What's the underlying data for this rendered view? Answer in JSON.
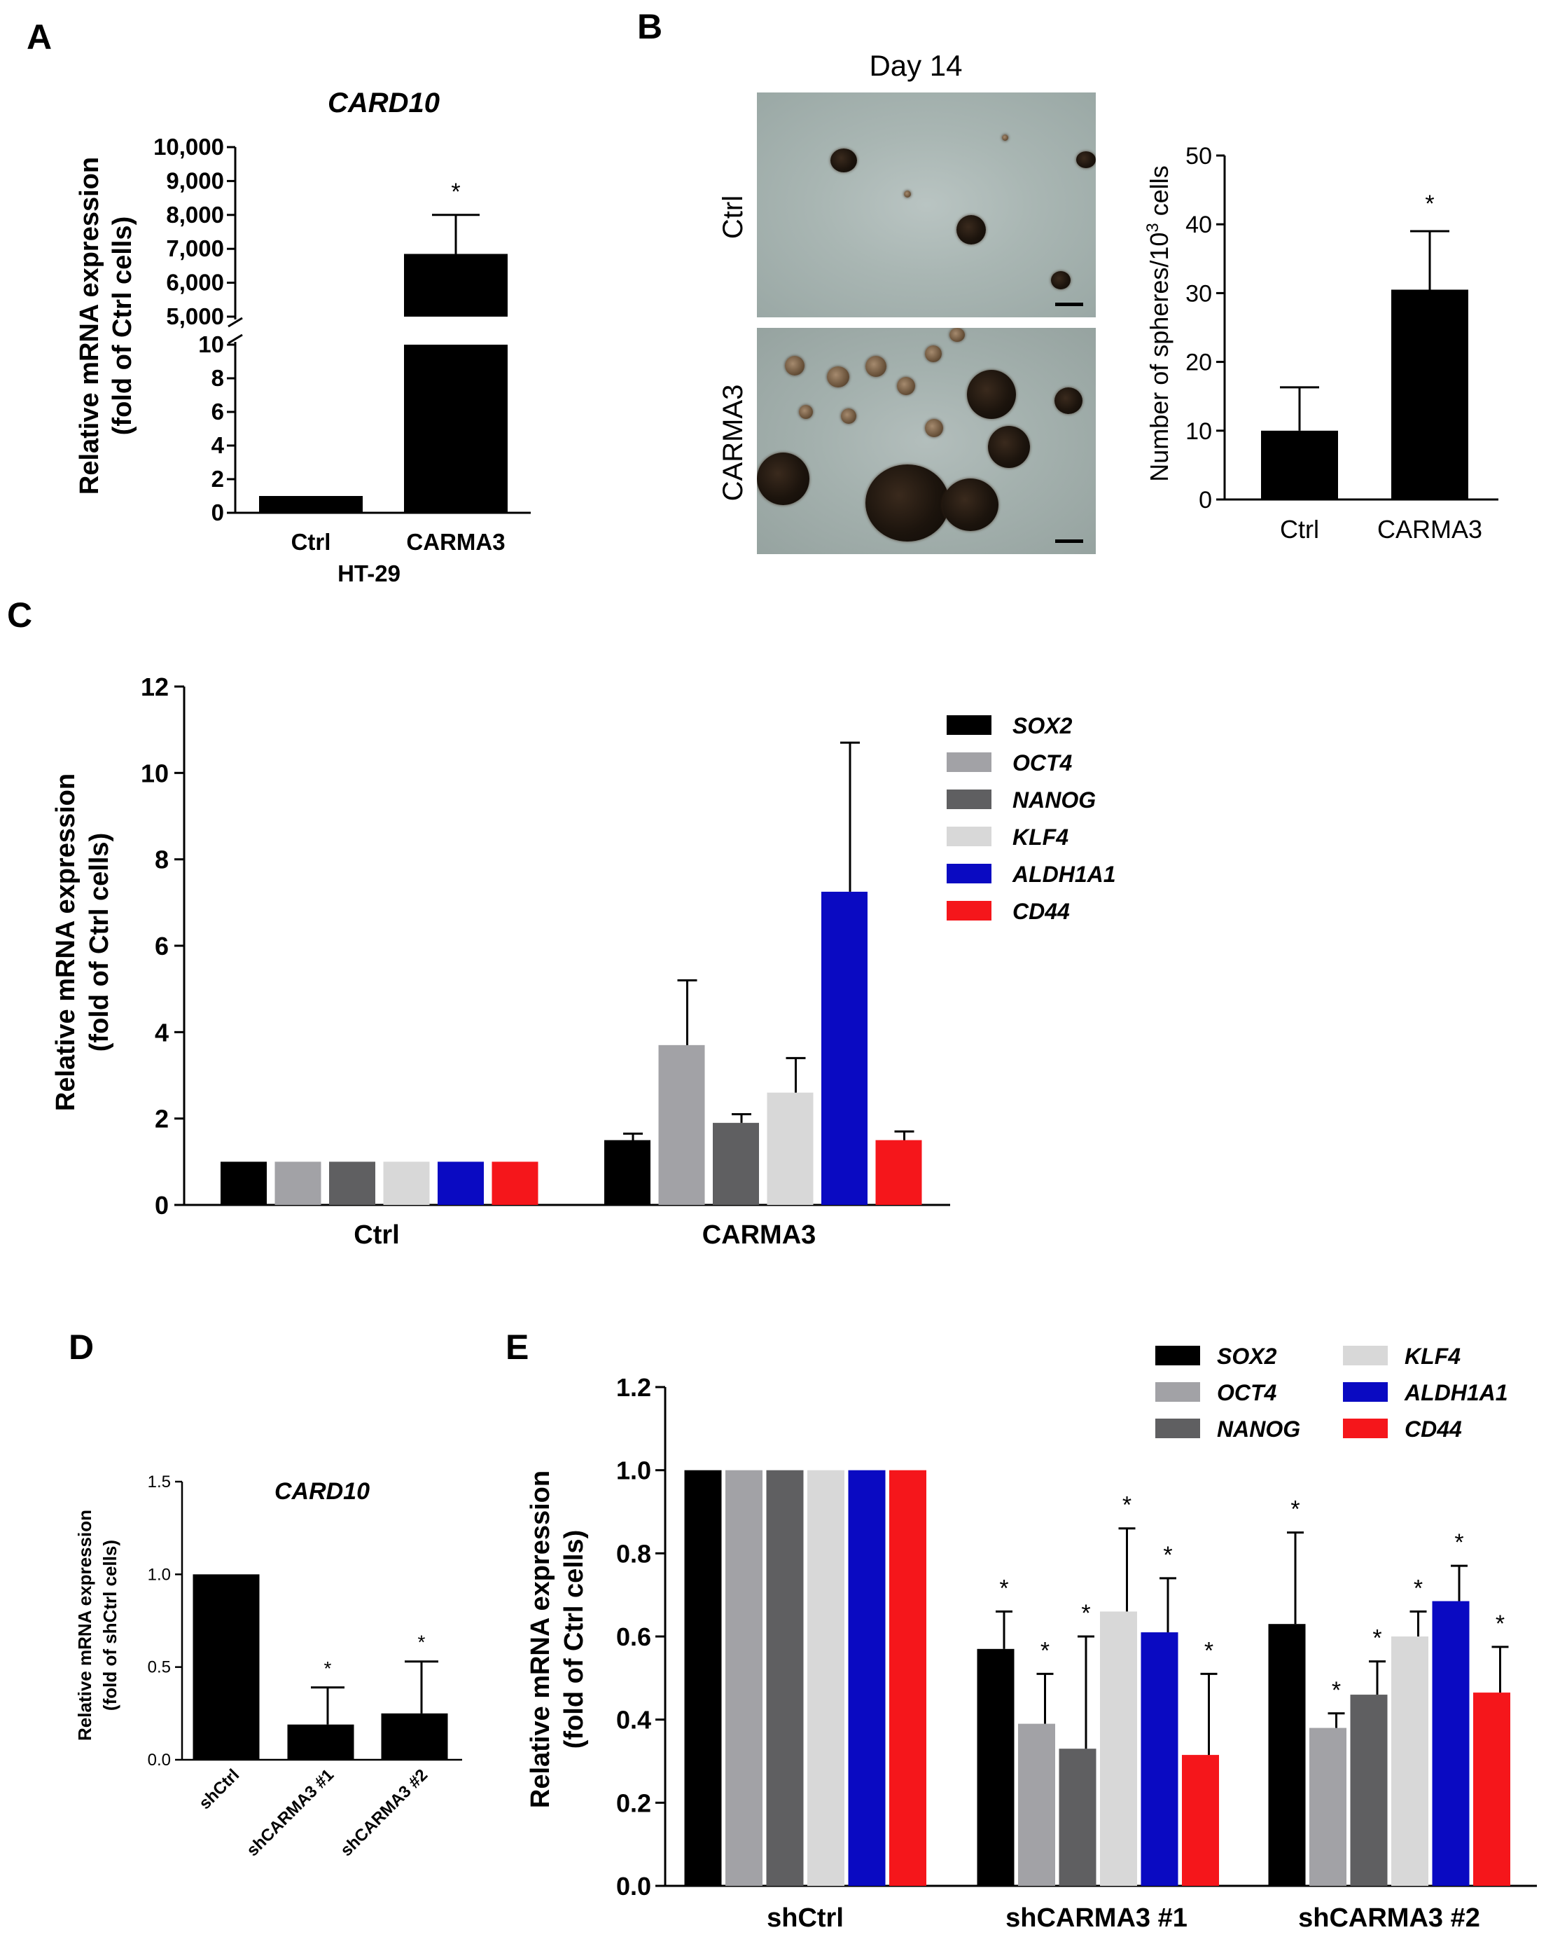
{
  "panels": {
    "A": {
      "label": "A",
      "title": "CARD10",
      "ylabel": [
        "Relative mRNA expression",
        "(fold of Ctrl cells)"
      ],
      "xlabel": "HT-29",
      "upper_ticks": [
        "5,000",
        "6,000",
        "7,000",
        "8,000",
        "9,000",
        "10,000"
      ],
      "lower_ticks": [
        "0",
        "2",
        "4",
        "6",
        "8",
        "10"
      ],
      "categories": [
        "Ctrl",
        "CARMA3"
      ],
      "significance": "*"
    },
    "B": {
      "label": "B",
      "image_title": "Day 14",
      "image_rows": [
        "Ctrl",
        "CARMA3"
      ],
      "ylabel_main": "Number of spheres/10",
      "ylabel_sup": "3",
      "ylabel_tail": " cells",
      "ticks": [
        "0",
        "10",
        "20",
        "30",
        "40",
        "50"
      ],
      "categories": [
        "Ctrl",
        "CARMA3"
      ],
      "significance": "*"
    },
    "C": {
      "label": "C",
      "ylabel": [
        "Relative mRNA expression",
        "(fold of Ctrl cells)"
      ],
      "ticks": [
        "0",
        "2",
        "4",
        "6",
        "8",
        "10",
        "12"
      ],
      "categories": [
        "Ctrl",
        "CARMA3"
      ]
    },
    "D": {
      "label": "D",
      "title": "CARD10",
      "ylabel": [
        "Relative mRNA expression",
        "(fold of shCtrl cells)"
      ],
      "ticks": [
        "0.0",
        "0.5",
        "1.0",
        "1.5"
      ],
      "categories": [
        "shCtrl",
        "shCARMA3 #1",
        "shCARMA3 #2"
      ],
      "significance": "*"
    },
    "E": {
      "label": "E",
      "ylabel": [
        "Relative mRNA expression",
        "(fold of Ctrl cells)"
      ],
      "ticks": [
        "0.0",
        "0.2",
        "0.4",
        "0.6",
        "0.8",
        "1.0",
        "1.2"
      ],
      "categories": [
        "shCtrl",
        "shCARMA3 #1",
        "shCARMA3 #2"
      ],
      "significance": "*"
    }
  },
  "colors": {
    "SOX2": "#000000",
    "OCT4": "#a2a2a6",
    "NANOG": "#5f5f61",
    "KLF4": "#d8d8d8",
    "ALDH1A1": "#0a0ac2",
    "CD44": "#f5161b"
  },
  "chart_data": [
    {
      "type": "bar",
      "panel": "A",
      "title": "CARD10",
      "categories": [
        "Ctrl",
        "CARMA3"
      ],
      "values": [
        1,
        6850
      ],
      "errors": [
        0,
        1150
      ],
      "xlabel": "HT-29",
      "ylabel": "Relative mRNA expression (fold of Ctrl cells)",
      "broken_axis": {
        "lower": [
          0,
          10
        ],
        "upper": [
          5000,
          10000
        ]
      }
    },
    {
      "type": "bar",
      "panel": "B",
      "categories": [
        "Ctrl",
        "CARMA3"
      ],
      "values": [
        10,
        30.5
      ],
      "errors": [
        6.3,
        8.5
      ],
      "ylabel": "Number of spheres/10^3 cells",
      "ylim": [
        0,
        50
      ]
    },
    {
      "type": "bar",
      "panel": "C",
      "categories": [
        "Ctrl",
        "CARMA3"
      ],
      "series": [
        {
          "name": "SOX2",
          "values": [
            1,
            1.5
          ],
          "errors": [
            0,
            0.15
          ]
        },
        {
          "name": "OCT4",
          "values": [
            1,
            3.7
          ],
          "errors": [
            0,
            1.5
          ]
        },
        {
          "name": "NANOG",
          "values": [
            1,
            1.9
          ],
          "errors": [
            0,
            0.2
          ]
        },
        {
          "name": "KLF4",
          "values": [
            1,
            2.6
          ],
          "errors": [
            0,
            0.8
          ]
        },
        {
          "name": "ALDH1A1",
          "values": [
            1,
            7.25
          ],
          "errors": [
            0,
            3.45
          ]
        },
        {
          "name": "CD44",
          "values": [
            1,
            1.5
          ],
          "errors": [
            0,
            0.2
          ]
        }
      ],
      "ylabel": "Relative mRNA expression (fold of Ctrl cells)",
      "ylim": [
        0,
        12
      ]
    },
    {
      "type": "bar",
      "panel": "D",
      "title": "CARD10",
      "categories": [
        "shCtrl",
        "shCARMA3 #1",
        "shCARMA3 #2"
      ],
      "values": [
        1.0,
        0.19,
        0.25
      ],
      "errors": [
        0,
        0.2,
        0.28
      ],
      "ylabel": "Relative mRNA expression (fold of shCtrl cells)",
      "ylim": [
        0,
        1.5
      ]
    },
    {
      "type": "bar",
      "panel": "E",
      "categories": [
        "shCtrl",
        "shCARMA3 #1",
        "shCARMA3 #2"
      ],
      "series": [
        {
          "name": "SOX2",
          "values": [
            1.0,
            0.57,
            0.63
          ],
          "errors": [
            0,
            0.09,
            0.22
          ]
        },
        {
          "name": "OCT4",
          "values": [
            1.0,
            0.39,
            0.38
          ],
          "errors": [
            0,
            0.12,
            0.035
          ]
        },
        {
          "name": "NANOG",
          "values": [
            1.0,
            0.33,
            0.46
          ],
          "errors": [
            0,
            0.27,
            0.08
          ]
        },
        {
          "name": "KLF4",
          "values": [
            1.0,
            0.66,
            0.6
          ],
          "errors": [
            0,
            0.2,
            0.06
          ]
        },
        {
          "name": "ALDH1A1",
          "values": [
            1.0,
            0.61,
            0.685
          ],
          "errors": [
            0,
            0.13,
            0.085
          ]
        },
        {
          "name": "CD44",
          "values": [
            1.0,
            0.315,
            0.465
          ],
          "errors": [
            0,
            0.195,
            0.11
          ]
        }
      ],
      "ylabel": "Relative mRNA expression (fold of Ctrl cells)",
      "ylim": [
        0,
        1.2
      ]
    }
  ]
}
